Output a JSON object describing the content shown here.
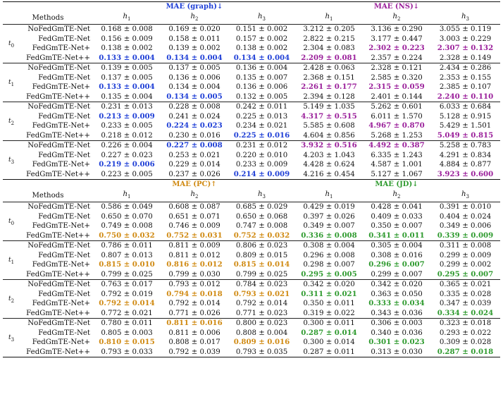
{
  "sections": [
    {
      "metric_left": "MAE (graph)↓",
      "metric_right": "MAE (NS)↓",
      "method_header": "Methods",
      "h_labels": [
        "h",
        "h",
        "h"
      ],
      "h_subs": [
        "1",
        "2",
        "3"
      ],
      "groups": [
        {
          "t": "t",
          "t_sub": "0",
          "rows": [
            {
              "method": "NoFedGmTE-Net",
              "cells": [
                "0.168 ± 0.008",
                "0.169 ± 0.020",
                "0.151 ± 0.002",
                "3.212 ± 0.205",
                "3.136 ± 0.290",
                "3.055 ± 0.119"
              ]
            },
            {
              "method": "FedGmTE-Net",
              "cells": [
                "0.156 ± 0.009",
                "0.158 ± 0.011",
                "0.157 ± 0.002",
                "2.822 ± 0.215",
                "3.177 ± 0.447",
                "3.003 ± 0.229"
              ]
            },
            {
              "method": "FedGmTE-Net+",
              "cells": [
                "0.138 ± 0.002",
                "0.139 ± 0.002",
                "0.138 ± 0.002",
                "2.304 ± 0.083",
                "2.302 ± 0.223",
                "2.307 ± 0.132"
              ]
            },
            {
              "method": "FedGmTE-Net++",
              "cells": [
                "0.133 ± 0.004",
                "0.134 ± 0.004",
                "0.134 ± 0.004",
                "2.209 ± 0.081",
                "2.357 ± 0.224",
                "2.328 ± 0.149"
              ]
            }
          ]
        },
        {
          "t": "t",
          "t_sub": "1",
          "rows": [
            {
              "method": "NoFedGmTE-Net",
              "cells": [
                "0.139 ± 0.005",
                "0.137 ± 0.005",
                "0.136 ± 0.004",
                "2.428 ± 0.063",
                "2.328 ± 0.121",
                "2.434 ± 0.286"
              ]
            },
            {
              "method": "FedGmTE-Net",
              "cells": [
                "0.137 ± 0.005",
                "0.136 ± 0.006",
                "0.135 ± 0.007",
                "2.368 ± 0.151",
                "2.585 ± 0.320",
                "2.353 ± 0.155"
              ]
            },
            {
              "method": "FedGmTE-Net+",
              "cells": [
                "0.133 ± 0.004",
                "0.134 ± 0.004",
                "0.136 ± 0.006",
                "2.261 ± 0.177",
                "2.315 ± 0.059",
                "2.385 ± 0.107"
              ]
            },
            {
              "method": "FedGmTE-Net++",
              "cells": [
                "0.135 ± 0.004",
                "0.134 ± 0.005",
                "0.132 ± 0.005",
                "2.394 ± 0.128",
                "2.401 ± 0.144",
                "2.240 ± 0.110"
              ]
            }
          ]
        },
        {
          "t": "t",
          "t_sub": "2",
          "rows": [
            {
              "method": "NoFedGmTE-Net",
              "cells": [
                "0.231 ± 0.013",
                "0.228 ± 0.008",
                "0.242 ± 0.011",
                "5.149 ± 1.035",
                "5.262 ± 0.601",
                "6.033 ± 0.684"
              ]
            },
            {
              "method": "FedGmTE-Net",
              "cells": [
                "0.213 ± 0.009",
                "0.241 ± 0.024",
                "0.225 ± 0.013",
                "4.317 ± 0.515",
                "6.011 ± 1.570",
                "5.128 ± 0.915"
              ]
            },
            {
              "method": "FedGmTE-Net+",
              "cells": [
                "0.233 ± 0.005",
                "0.224 ± 0.023",
                "0.234 ± 0.021",
                "5.585 ± 0.608",
                "4.967 ± 0.870",
                "5.429 ± 1.501"
              ]
            },
            {
              "method": "FedGmTE-Net++",
              "cells": [
                "0.218 ± 0.012",
                "0.230 ± 0.016",
                "0.225 ± 0.016",
                "4.604 ± 0.856",
                "5.268 ± 1.253",
                "5.049 ± 0.815"
              ]
            }
          ]
        },
        {
          "t": "t",
          "t_sub": "3",
          "rows": [
            {
              "method": "NoFedGmTE-Net",
              "cells": [
                "0.226 ± 0.004",
                "0.227 ± 0.008",
                "0.231 ± 0.012",
                "3.932 ± 0.516",
                "4.492 ± 0.387",
                "5.258 ± 0.783"
              ]
            },
            {
              "method": "FedGmTE-Net",
              "cells": [
                "0.227 ± 0.023",
                "0.253 ± 0.021",
                "0.220 ± 0.010",
                "4.203 ± 1.043",
                "6.335 ± 1.243",
                "4.291 ± 0.834"
              ]
            },
            {
              "method": "FedGmTE-Net+",
              "cells": [
                "0.219 ± 0.006",
                "0.229 ± 0.014",
                "0.233 ± 0.009",
                "4.428 ± 0.624",
                "4.587 ± 1.001",
                "4.884 ± 0.877"
              ]
            },
            {
              "method": "FedGmTE-Net++",
              "cells": [
                "0.223 ± 0.005",
                "0.237 ± 0.026",
                "0.214 ± 0.009",
                "4.216 ± 0.454",
                "5.127 ± 1.067",
                "3.923 ± 0.600"
              ]
            }
          ]
        }
      ]
    },
    {
      "metric_left": "MAE (PC)↑",
      "metric_right": "MAE (JD)↓",
      "method_header": "Methods",
      "h_labels": [
        "h",
        "h",
        "h"
      ],
      "h_subs": [
        "1",
        "2",
        "3"
      ],
      "groups": [
        {
          "t": "t",
          "t_sub": "0",
          "rows": [
            {
              "method": "NoFedGmTE-Net",
              "cells": [
                "0.586 ± 0.049",
                "0.608 ± 0.087",
                "0.685 ± 0.029",
                "0.429 ± 0.019",
                "0.428 ± 0.041",
                "0.391 ± 0.010"
              ]
            },
            {
              "method": "FedGmTE-Net",
              "cells": [
                "0.650 ± 0.070",
                "0.651 ± 0.071",
                "0.650 ± 0.068",
                "0.397 ± 0.026",
                "0.409 ± 0.033",
                "0.404 ± 0.024"
              ]
            },
            {
              "method": "FedGmTE-Net+",
              "cells": [
                "0.749 ± 0.008",
                "0.746 ± 0.009",
                "0.747 ± 0.008",
                "0.349 ± 0.007",
                "0.350 ± 0.007",
                "0.349 ± 0.006"
              ]
            },
            {
              "method": "FedGmTE-Net++",
              "cells": [
                "0.750 ± 0.032",
                "0.752 ± 0.031",
                "0.752 ± 0.032",
                "0.336 ± 0.008",
                "0.341 ± 0.011",
                "0.339 ± 0.009"
              ]
            }
          ]
        },
        {
          "t": "t",
          "t_sub": "1",
          "rows": [
            {
              "method": "NoFedGmTE-Net",
              "cells": [
                "0.786 ± 0.011",
                "0.811 ± 0.009",
                "0.806 ± 0.023",
                "0.308 ± 0.004",
                "0.305 ± 0.004",
                "0.311 ± 0.008"
              ]
            },
            {
              "method": "FedGmTE-Net",
              "cells": [
                "0.807 ± 0.013",
                "0.811 ± 0.012",
                "0.809 ± 0.015",
                "0.296 ± 0.008",
                "0.308 ± 0.016",
                "0.299 ± 0.009"
              ]
            },
            {
              "method": "FedGmTE-Net+",
              "cells": [
                "0.815 ± 0.010",
                "0.816 ± 0.012",
                "0.815 ± 0.014",
                "0.298 ± 0.007",
                "0.296 ± 0.007",
                "0.299 ± 0.002"
              ]
            },
            {
              "method": "FedGmTE-Net++",
              "cells": [
                "0.799 ± 0.025",
                "0.799 ± 0.030",
                "0.799 ± 0.025",
                "0.295 ± 0.005",
                "0.299 ± 0.007",
                "0.295 ± 0.007"
              ]
            }
          ]
        },
        {
          "t": "t",
          "t_sub": "2",
          "rows": [
            {
              "method": "NoFedGmTE-Net",
              "cells": [
                "0.763 ± 0.017",
                "0.793 ± 0.012",
                "0.784 ± 0.023",
                "0.342 ± 0.020",
                "0.342 ± 0.020",
                "0.365 ± 0.021"
              ]
            },
            {
              "method": "FedGmTE-Net",
              "cells": [
                "0.792 ± 0.019",
                "0.794 ± 0.018",
                "0.793 ± 0.021",
                "0.311 ± 0.021",
                "0.363 ± 0.050",
                "0.335 ± 0.028"
              ]
            },
            {
              "method": "FedGmTE-Net+",
              "cells": [
                "0.792 ± 0.014",
                "0.792 ± 0.014",
                "0.792 ± 0.014",
                "0.350 ± 0.011",
                "0.333 ± 0.034",
                "0.347 ± 0.039"
              ]
            },
            {
              "method": "FedGmTE-Net++",
              "cells": [
                "0.772 ± 0.021",
                "0.771 ± 0.026",
                "0.771 ± 0.023",
                "0.319 ± 0.022",
                "0.343 ± 0.036",
                "0.334 ± 0.024"
              ]
            }
          ]
        },
        {
          "t": "t",
          "t_sub": "3",
          "rows": [
            {
              "method": "NoFedGmTE-Net",
              "cells": [
                "0.780 ± 0.011",
                "0.811 ± 0.016",
                "0.800 ± 0.023",
                "0.300 ± 0.011",
                "0.306 ± 0.003",
                "0.323 ± 0.018"
              ]
            },
            {
              "method": "FedGmTE-Net",
              "cells": [
                "0.805 ± 0.003",
                "0.811 ± 0.006",
                "0.808 ± 0.004",
                "0.287 ± 0.014",
                "0.340 ± 0.036",
                "0.293 ± 0.022"
              ]
            },
            {
              "method": "FedGmTE-Net+",
              "cells": [
                "0.810 ± 0.015",
                "0.808 ± 0.017",
                "0.809 ± 0.016",
                "0.300 ± 0.014",
                "0.301 ± 0.023",
                "0.309 ± 0.028"
              ]
            },
            {
              "method": "FedGmTE-Net++",
              "cells": [
                "0.793 ± 0.033",
                "0.792 ± 0.039",
                "0.793 ± 0.035",
                "0.287 ± 0.011",
                "0.313 ± 0.030",
                "0.287 ± 0.018"
              ]
            }
          ]
        }
      ]
    }
  ],
  "colors": {
    "blue": "#1f3fd6",
    "purple": "#9a1f9a",
    "orange": "#d08a12",
    "green": "#2e9a2e"
  }
}
